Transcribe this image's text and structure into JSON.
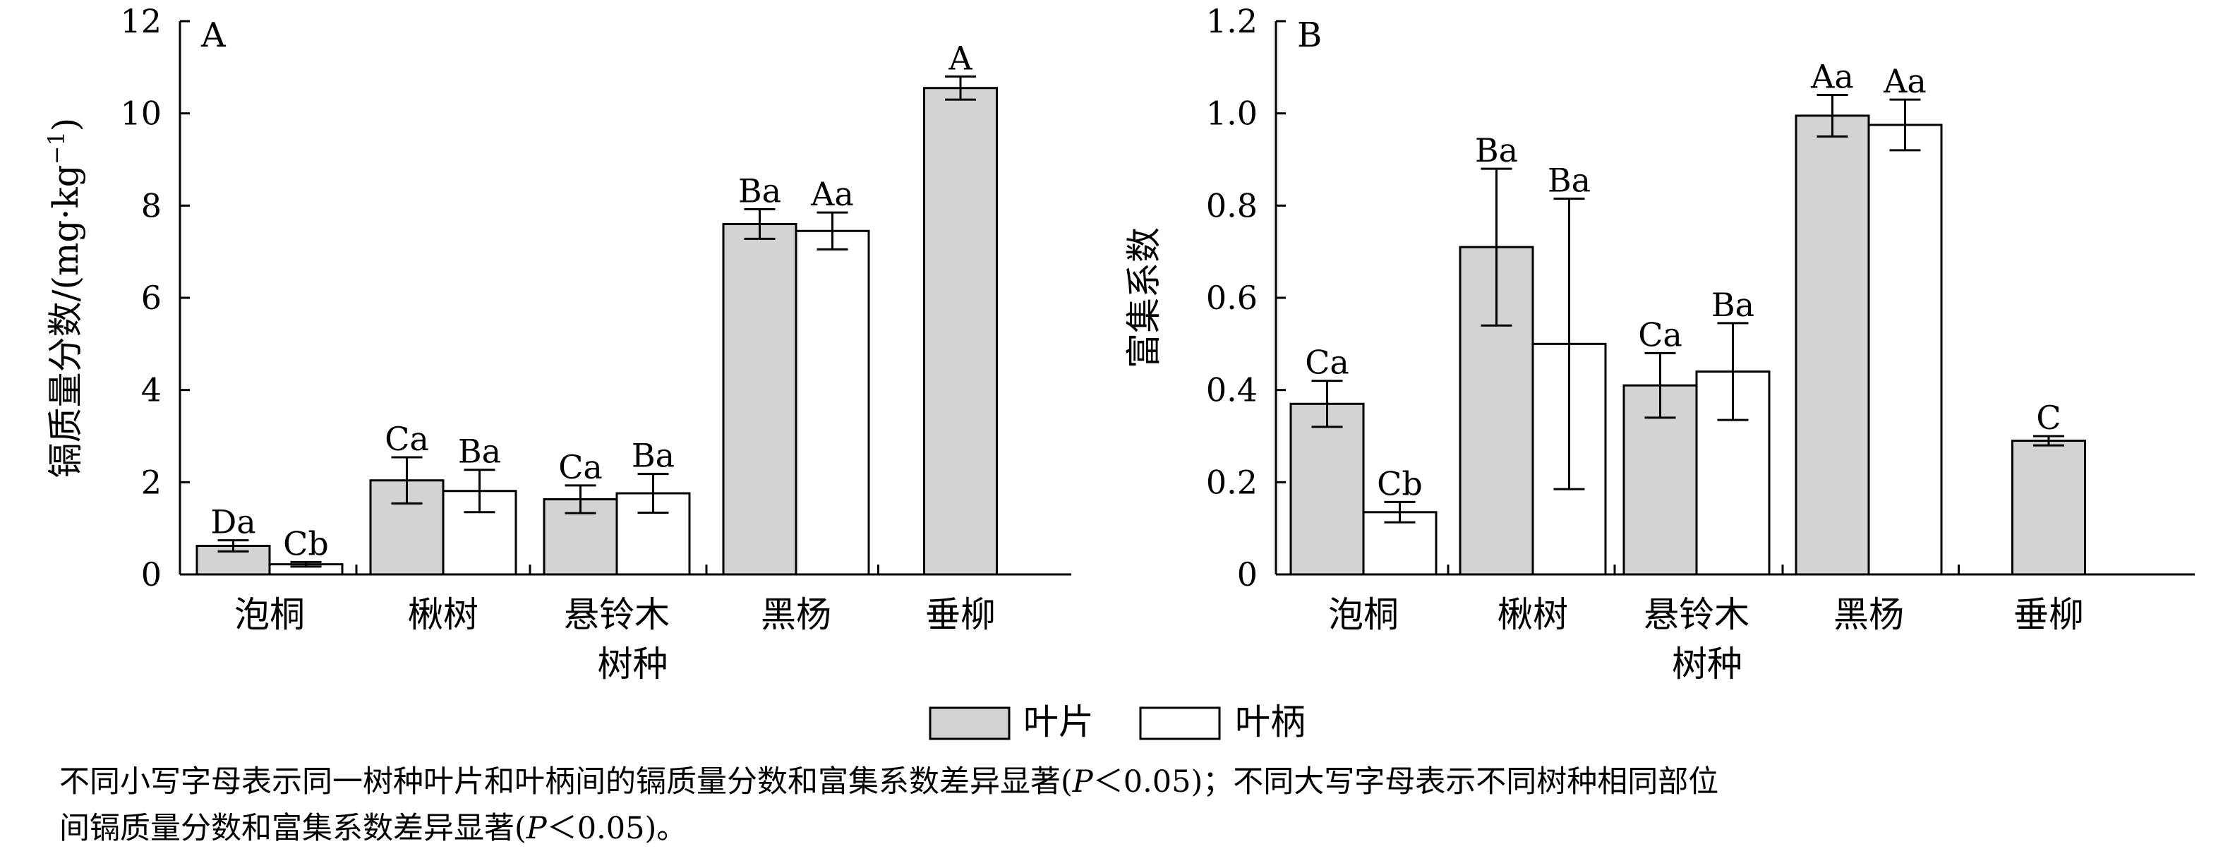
{
  "chart_data": [
    {
      "type": "bar",
      "panel_label": "A",
      "categories": [
        "泡桐",
        "楸树",
        "悬铃木",
        "黑杨",
        "垂柳"
      ],
      "xlabel": "树种",
      "ylabel": "镉质量分数/(mg·kg",
      "ylabel_sup": "−1",
      "ylabel_close": ")",
      "ylim": [
        0,
        12
      ],
      "yticks": [
        "0",
        "2",
        "4",
        "6",
        "8",
        "10",
        "12"
      ],
      "series": [
        {
          "name": "叶片",
          "color": "#d3d3d3",
          "values": [
            0.62,
            2.04,
            1.63,
            7.6,
            10.55
          ],
          "errors": [
            0.12,
            0.5,
            0.3,
            0.32,
            0.25
          ],
          "labels": [
            "Da",
            "Ca",
            "Ca",
            "Ba",
            "A"
          ]
        },
        {
          "name": "叶柄",
          "color": "#ffffff",
          "values": [
            0.22,
            1.81,
            1.76,
            7.45,
            null
          ],
          "errors": [
            0.05,
            0.46,
            0.42,
            0.4,
            null
          ],
          "labels": [
            "Cb",
            "Ba",
            "Ba",
            "Aa",
            ""
          ]
        }
      ]
    },
    {
      "type": "bar",
      "panel_label": "B",
      "categories": [
        "泡桐",
        "楸树",
        "悬铃木",
        "黑杨",
        "垂柳"
      ],
      "xlabel": "树种",
      "ylabel": "富集系数",
      "ylim": [
        0,
        1.2
      ],
      "yticks": [
        "0",
        "0.2",
        "0.4",
        "0.6",
        "0.8",
        "1.0",
        "1.2"
      ],
      "series": [
        {
          "name": "叶片",
          "color": "#d3d3d3",
          "values": [
            0.37,
            0.71,
            0.41,
            0.995,
            0.29
          ],
          "errors": [
            0.05,
            0.17,
            0.07,
            0.045,
            0.01
          ],
          "labels": [
            "Ca",
            "Ba",
            "Ca",
            "Aa",
            "C"
          ]
        },
        {
          "name": "叶柄",
          "color": "#ffffff",
          "values": [
            0.135,
            0.5,
            0.44,
            0.975,
            null
          ],
          "errors": [
            0.022,
            0.315,
            0.105,
            0.055,
            null
          ],
          "labels": [
            "Cb",
            "Ba",
            "Ba",
            "Aa",
            ""
          ]
        }
      ]
    }
  ],
  "legend": {
    "position": "bottom-center",
    "items": [
      {
        "label": "叶片",
        "color": "#d3d3d3"
      },
      {
        "label": "叶柄",
        "color": "#ffffff"
      }
    ]
  },
  "caption": {
    "line1_a": "不同小写字母表示同一树种叶片和叶柄间的镉质量分数和富集系数差异显著(",
    "line1_p": "P",
    "line1_b": "＜0.05)；不同大写字母表示不同树种相同部位",
    "line2_a": "间镉质量分数和富集系数差异显著(",
    "line2_p": "P",
    "line2_b": "＜0.05)。"
  }
}
